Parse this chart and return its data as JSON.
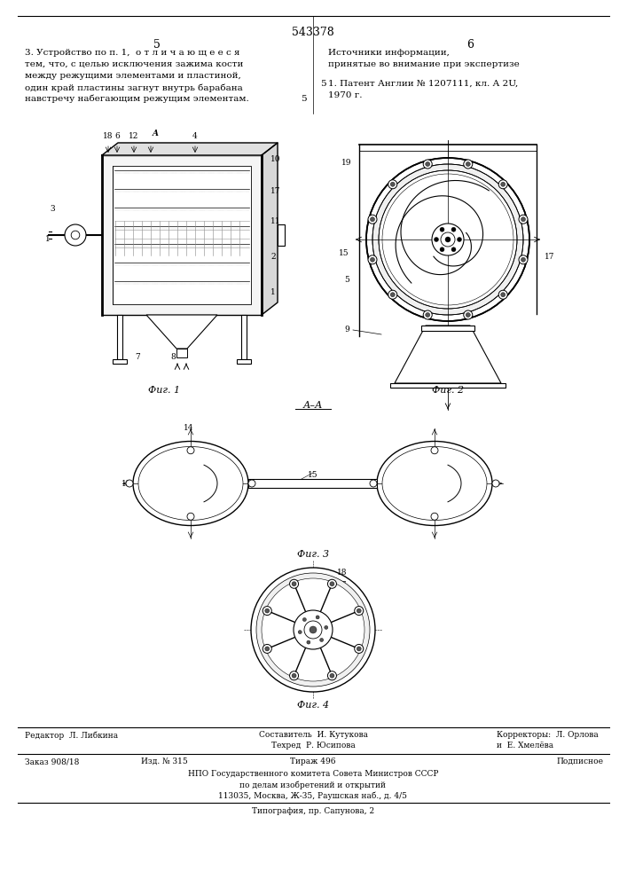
{
  "background_color": "#ffffff",
  "page_width": 7.07,
  "page_height": 10.0,
  "patent_number": "543378",
  "page_numbers": [
    "5",
    "6"
  ],
  "left_text_lines": [
    "3. Устройство по п. 1,  о т л и ч а ю щ е е с я",
    "тем, что, с целью исключения зажима кости",
    "между режущими элементами и пластиной,",
    "один край пластины загнут внутрь барабана",
    "навстречу набегающим режущим элементам."
  ],
  "right_title": "Источники информации,",
  "right_subtitle": "принятые во внимание при экспертизе",
  "ref_line1": "1. Патент Англии № 1207111, кл. А 2U,",
  "ref_line2": "1970 г.",
  "fig1_caption": "Фиг. 1",
  "fig2_caption": "Фиг. 2",
  "fig3_caption": "Фиг. 3",
  "fig4_caption": "Фиг. 4",
  "fig3_label": "А–А",
  "footer_editor": "Редактор  Л. Либкина",
  "footer_composer": "Составитель  И. Кутукова",
  "footer_techred": "Техред  Р. Юсипова",
  "footer_correctors": "Корректоры:  Л. Орлова",
  "footer_correctors2": "и  Е. Хмелёва",
  "footer_zakaz": "Заказ 908/18",
  "footer_izd": "Изд. № 315",
  "footer_tirazh": "Тираж 496",
  "footer_podpisnoe": "Подписное",
  "footer_npo": "НПО Государственного комитета Совета Министров СССР",
  "footer_npo2": "по делам изобретений и открытий",
  "footer_address": "113035, Москва, Ж-35, Раушская наб., д. 4/5",
  "footer_typo": "Типография, пр. Сапунова, 2",
  "tc": "#000000"
}
